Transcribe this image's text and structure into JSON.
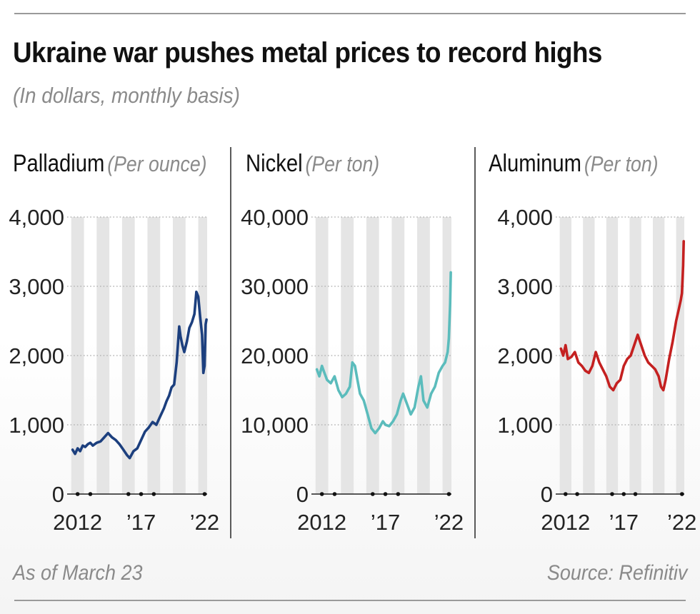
{
  "title": "Ukraine war pushes metal prices to record highs",
  "subtitle": "(In dollars, monthly basis)",
  "footnote": "As of March 23",
  "source": "Source: Refinitiv",
  "colors": {
    "palladium": "#1c3f7e",
    "nickel": "#5bbcbc",
    "aluminum": "#c42020",
    "year_bands": "#e5e5e5",
    "grid_dots": "#b5b5b5"
  },
  "chart_data": [
    {
      "type": "line",
      "title": "Palladium",
      "unit": "(Per ounce)",
      "ylim": [
        0,
        4000
      ],
      "xlim": [
        2011.4,
        2022.2
      ],
      "yticks": [
        0,
        1000,
        2000,
        3000,
        4000
      ],
      "ytick_labels": [
        "0",
        "1,000",
        "2,000",
        "3,000",
        "4,000"
      ],
      "xtick_labels": [
        "2012",
        "’17",
        "’22"
      ],
      "xtick_positions": [
        2012,
        2017,
        2022
      ],
      "x_dot_positions": [
        2012,
        2013,
        2016,
        2017,
        2018,
        2022
      ],
      "grid": "dotted horizontal, alternating year bands",
      "series": [
        {
          "name": "",
          "x": [
            2011.6,
            2011.8,
            2012.0,
            2012.2,
            2012.4,
            2012.6,
            2012.8,
            2013.0,
            2013.2,
            2013.5,
            2013.8,
            2014.1,
            2014.4,
            2014.7,
            2015.0,
            2015.3,
            2015.6,
            2015.9,
            2016.1,
            2016.4,
            2016.7,
            2017.0,
            2017.3,
            2017.6,
            2017.9,
            2018.2,
            2018.5,
            2018.8,
            2019.0,
            2019.2,
            2019.4,
            2019.6,
            2019.8,
            2020.0,
            2020.1,
            2020.25,
            2020.4,
            2020.6,
            2020.8,
            2021.0,
            2021.2,
            2021.35,
            2021.5,
            2021.65,
            2021.8,
            2021.9,
            2022.0,
            2022.08,
            2022.15
          ],
          "values": [
            640,
            580,
            660,
            620,
            700,
            680,
            720,
            740,
            700,
            740,
            760,
            820,
            880,
            820,
            780,
            720,
            640,
            560,
            520,
            620,
            660,
            780,
            900,
            960,
            1040,
            1000,
            1120,
            1240,
            1340,
            1420,
            1540,
            1580,
            1900,
            2420,
            2280,
            2150,
            2050,
            2200,
            2400,
            2480,
            2600,
            2920,
            2850,
            2560,
            2300,
            1750,
            1850,
            2450,
            2520
          ]
        }
      ]
    },
    {
      "type": "line",
      "title": "Nickel",
      "unit": "(Per ton)",
      "ylim": [
        0,
        40000
      ],
      "xlim": [
        2011.4,
        2022.2
      ],
      "yticks": [
        0,
        10000,
        20000,
        30000,
        40000
      ],
      "ytick_labels": [
        "0",
        "10,000",
        "20,000",
        "30,000",
        "40,000"
      ],
      "xtick_labels": [
        "2012",
        "’17",
        "’22"
      ],
      "xtick_positions": [
        2012,
        2017,
        2022
      ],
      "x_dot_positions": [
        2012,
        2013,
        2016,
        2017,
        2018,
        2022
      ],
      "grid": "dotted horizontal, alternating year bands",
      "series": [
        {
          "name": "",
          "x": [
            2011.6,
            2011.8,
            2012.0,
            2012.2,
            2012.4,
            2012.7,
            2013.0,
            2013.3,
            2013.6,
            2013.9,
            2014.2,
            2014.4,
            2014.6,
            2014.8,
            2015.0,
            2015.3,
            2015.6,
            2015.9,
            2016.2,
            2016.5,
            2016.8,
            2017.0,
            2017.3,
            2017.6,
            2017.9,
            2018.2,
            2018.4,
            2018.7,
            2019.0,
            2019.3,
            2019.6,
            2019.8,
            2020.0,
            2020.3,
            2020.6,
            2020.9,
            2021.2,
            2021.5,
            2021.7,
            2021.9,
            2022.0,
            2022.1,
            2022.15
          ],
          "values": [
            18000,
            17000,
            18500,
            17500,
            16500,
            16000,
            17000,
            15000,
            14000,
            14500,
            15500,
            19000,
            18500,
            16500,
            14500,
            13500,
            11500,
            9500,
            8800,
            9500,
            10500,
            10000,
            9800,
            10500,
            11500,
            13500,
            14500,
            13000,
            11500,
            12500,
            15500,
            17000,
            13500,
            12500,
            14500,
            15500,
            17500,
            18500,
            19000,
            20500,
            22500,
            27500,
            32000
          ]
        }
      ]
    },
    {
      "type": "line",
      "title": "Aluminum",
      "unit": "(Per ton)",
      "ylim": [
        0,
        4000
      ],
      "xlim": [
        2011.4,
        2022.2
      ],
      "yticks": [
        0,
        1000,
        2000,
        3000,
        4000
      ],
      "ytick_labels": [
        "0",
        "1,000",
        "2,000",
        "3,000",
        "4,000"
      ],
      "xtick_labels": [
        "2012",
        "’17",
        "’22"
      ],
      "xtick_positions": [
        2012,
        2017,
        2022
      ],
      "x_dot_positions": [
        2012,
        2013,
        2016,
        2017,
        2018,
        2022
      ],
      "grid": "dotted horizontal, alternating year bands",
      "series": [
        {
          "name": "",
          "x": [
            2011.6,
            2011.8,
            2012.0,
            2012.2,
            2012.5,
            2012.8,
            2013.1,
            2013.4,
            2013.7,
            2014.0,
            2014.3,
            2014.6,
            2014.9,
            2015.2,
            2015.5,
            2015.8,
            2016.1,
            2016.4,
            2016.7,
            2017.0,
            2017.3,
            2017.6,
            2017.9,
            2018.2,
            2018.5,
            2018.8,
            2019.1,
            2019.4,
            2019.7,
            2020.0,
            2020.2,
            2020.4,
            2020.6,
            2020.9,
            2021.2,
            2021.5,
            2021.7,
            2021.9,
            2022.0,
            2022.1,
            2022.15
          ],
          "values": [
            2100,
            2000,
            2150,
            1950,
            1980,
            2050,
            1900,
            1850,
            1780,
            1750,
            1850,
            2050,
            1900,
            1800,
            1700,
            1550,
            1500,
            1600,
            1650,
            1850,
            1950,
            2000,
            2150,
            2300,
            2150,
            2000,
            1900,
            1850,
            1800,
            1700,
            1550,
            1500,
            1650,
            1950,
            2200,
            2500,
            2650,
            2800,
            2900,
            3300,
            3650
          ]
        }
      ]
    }
  ]
}
